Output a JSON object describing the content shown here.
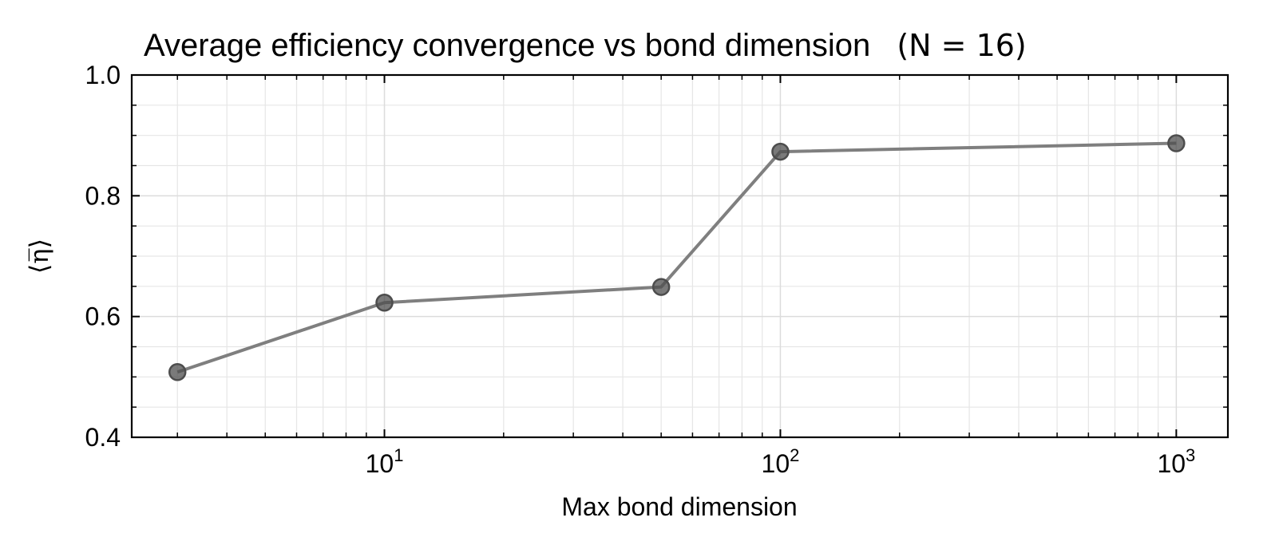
{
  "chart_data": {
    "type": "line",
    "title": "Average efficiency convergence vs bond dimension",
    "title_math": "(N = 16)",
    "xlabel": "Max bond dimension",
    "ylabel": "⟨η̅⟩",
    "x_scale": "log",
    "xlim": [
      2.3,
      1350
    ],
    "ylim": [
      0.4,
      1.0
    ],
    "x_major_ticks": [
      10,
      100,
      1000
    ],
    "x_tick_labels": [
      {
        "base": "10",
        "exp": "1"
      },
      {
        "base": "10",
        "exp": "2"
      },
      {
        "base": "10",
        "exp": "3"
      }
    ],
    "y_ticks": [
      0.4,
      0.6,
      0.8,
      1.0
    ],
    "y_tick_labels": [
      "0.4",
      "0.6",
      "0.8",
      "1.0"
    ],
    "grid": true,
    "series": [
      {
        "x": [
          3,
          10,
          50,
          100,
          1000
        ],
        "y": [
          0.508,
          0.623,
          0.649,
          0.873,
          0.887
        ],
        "color": "#7f7f7f",
        "marker_color": "#4d4d4d"
      }
    ]
  }
}
